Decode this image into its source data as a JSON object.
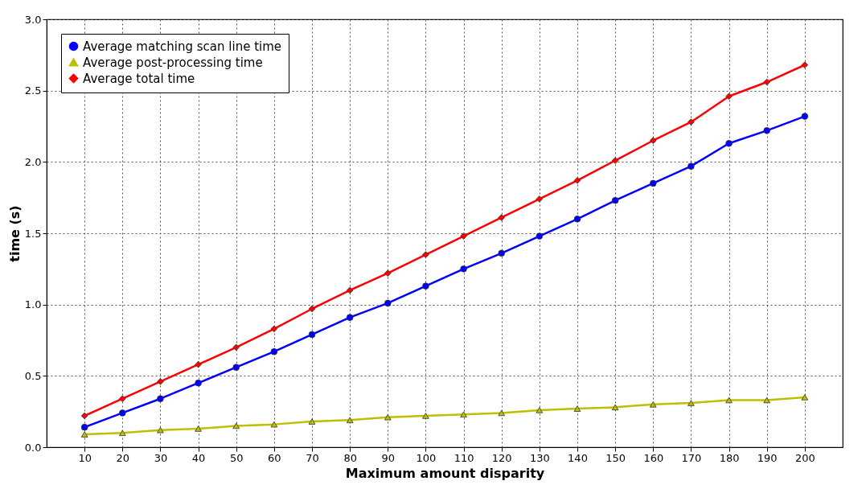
{
  "chart_data": {
    "type": "line",
    "xlabel": "Maximum amount disparity",
    "ylabel": "time (s)",
    "x": [
      10,
      20,
      30,
      40,
      50,
      60,
      70,
      80,
      90,
      100,
      110,
      120,
      130,
      140,
      150,
      160,
      170,
      180,
      190,
      200
    ],
    "xlim": [
      0,
      210
    ],
    "xticks": [
      10,
      20,
      30,
      40,
      50,
      60,
      70,
      80,
      90,
      100,
      110,
      120,
      130,
      140,
      150,
      160,
      170,
      180,
      190,
      200
    ],
    "ylim": [
      0,
      3.0
    ],
    "yticks": [
      {
        "value": 0,
        "label": "0.0"
      },
      {
        "value": 0.5,
        "label": "0.5"
      },
      {
        "value": 1,
        "label": "1.0"
      },
      {
        "value": 1.5,
        "label": "1.5"
      },
      {
        "value": 2,
        "label": "2.0"
      },
      {
        "value": 2.5,
        "label": "2.5"
      },
      {
        "value": 3,
        "label": "3.0"
      }
    ],
    "grid": true,
    "legend": "top left",
    "line_style": "solid",
    "series": [
      {
        "name": "Average matching scan line time",
        "color": "#0000ff",
        "marker": "circle",
        "values": [
          0.14,
          0.24,
          0.34,
          0.45,
          0.56,
          0.67,
          0.79,
          0.91,
          1.01,
          1.13,
          1.25,
          1.36,
          1.48,
          1.6,
          1.73,
          1.85,
          1.97,
          2.13,
          2.22,
          2.32
        ]
      },
      {
        "name": "Average post-processing time",
        "color": "#bfbf00",
        "marker": "triangle",
        "values": [
          0.09,
          0.1,
          0.12,
          0.13,
          0.15,
          0.16,
          0.18,
          0.19,
          0.21,
          0.22,
          0.23,
          0.24,
          0.26,
          0.27,
          0.28,
          0.3,
          0.31,
          0.33,
          0.33,
          0.35
        ]
      },
      {
        "name": "Average total time",
        "color": "#ff0000",
        "marker": "diamond",
        "values": [
          0.22,
          0.34,
          0.46,
          0.58,
          0.7,
          0.83,
          0.97,
          1.1,
          1.22,
          1.35,
          1.48,
          1.61,
          1.74,
          1.87,
          2.01,
          2.15,
          2.28,
          2.46,
          2.56,
          2.68
        ]
      }
    ]
  }
}
